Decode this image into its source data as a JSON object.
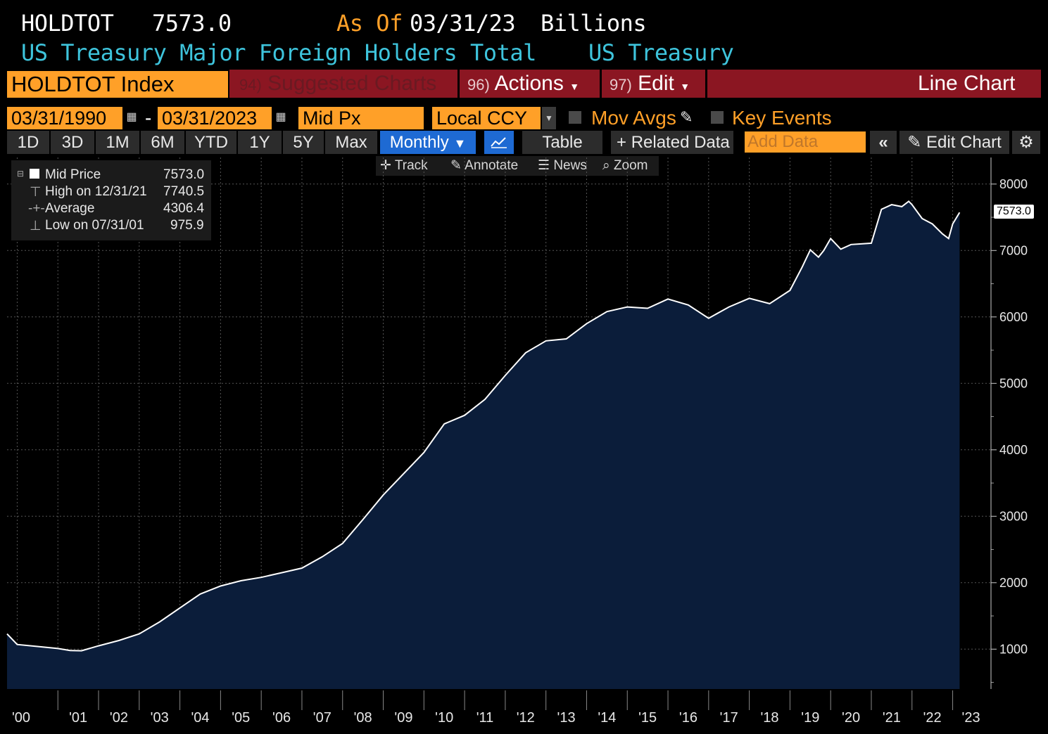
{
  "header": {
    "ticker": "HOLDTOT",
    "last_value": "7573.0",
    "as_of_label": "As Of",
    "as_of_date": "03/31/23",
    "units": "Billions",
    "description": "US Treasury Major Foreign Holders Total",
    "source": "US Treasury"
  },
  "command_bar": {
    "security": "HOLDTOT Index",
    "suggested_num": "94)",
    "suggested_label": "Suggested Charts",
    "actions_num": "96)",
    "actions_label": "Actions",
    "edit_num": "97)",
    "edit_label": "Edit",
    "chart_type": "Line Chart"
  },
  "settings_bar": {
    "start_date": "03/31/1990",
    "end_date": "03/31/2023",
    "date_dash": "-",
    "field": "Mid Px",
    "currency": "Local CCY",
    "mov_avgs": "Mov Avgs",
    "key_events": "Key Events"
  },
  "range_bar": {
    "ranges": [
      "1D",
      "3D",
      "1M",
      "6M",
      "YTD",
      "1Y",
      "5Y",
      "Max"
    ],
    "frequency": "Monthly",
    "table": "Table",
    "related": "Related Data",
    "add_data_placeholder": "Add Data",
    "edit_chart": "Edit Chart"
  },
  "chart_tools": {
    "track": "Track",
    "annotate": "Annotate",
    "news": "News",
    "zoom": "Zoom"
  },
  "legend": {
    "series_label": "Mid Price",
    "series_value": "7573.0",
    "high_label": "High on 12/31/21",
    "high_value": "7740.5",
    "avg_label": "Average",
    "avg_value": "4306.4",
    "low_label": "Low on 07/31/01",
    "low_value": "975.9"
  },
  "colors": {
    "accent_orange": "#ffa028",
    "title_cyan": "#3ec4dc",
    "bar_red": "#8b1622",
    "area_fill": "#0b1d3a",
    "active_blue": "#1e6ad3"
  },
  "chart_data": {
    "type": "area",
    "title": "US Treasury Major Foreign Holders Total",
    "ylabel": "Billions",
    "ylim": [
      400,
      8400
    ],
    "y_ticks": [
      1000,
      2000,
      3000,
      4000,
      5000,
      6000,
      7000,
      8000
    ],
    "x_tick_labels": [
      "'00",
      "'01",
      "'02",
      "'03",
      "'04",
      "'05",
      "'06",
      "'07",
      "'08",
      "'09",
      "'10",
      "'11",
      "'12",
      "'13",
      "'14",
      "'15",
      "'16",
      "'17",
      "'18",
      "'19",
      "'20",
      "'21",
      "'22",
      "'23"
    ],
    "x_tick_years": [
      2000,
      2001,
      2002,
      2003,
      2004,
      2005,
      2006,
      2007,
      2008,
      2009,
      2010,
      2011,
      2012,
      2013,
      2014,
      2015,
      2016,
      2017,
      2018,
      2019,
      2020,
      2021,
      2022,
      2023
    ],
    "x_range": [
      1999.75,
      2023.25
    ],
    "last_value_label": "7573.0",
    "series": [
      {
        "name": "Mid Price",
        "x": [
          1999.75,
          2000.0,
          2000.5,
          2001.0,
          2001.3,
          2001.58,
          2002.0,
          2002.5,
          2003.0,
          2003.5,
          2004.0,
          2004.5,
          2005.0,
          2005.5,
          2006.0,
          2006.5,
          2007.0,
          2007.5,
          2008.0,
          2008.5,
          2009.0,
          2009.5,
          2010.0,
          2010.5,
          2011.0,
          2011.5,
          2012.0,
          2012.5,
          2013.0,
          2013.5,
          2014.0,
          2014.5,
          2015.0,
          2015.5,
          2016.0,
          2016.5,
          2017.0,
          2017.5,
          2018.0,
          2018.5,
          2019.0,
          2019.3,
          2019.5,
          2019.7,
          2019.83,
          2020.0,
          2020.25,
          2020.5,
          2020.75,
          2021.0,
          2021.25,
          2021.5,
          2021.75,
          2021.92,
          2022.0,
          2022.25,
          2022.5,
          2022.75,
          2022.9,
          2023.0,
          2023.17
        ],
        "values": [
          1230,
          1070,
          1040,
          1010,
          980,
          975.9,
          1050,
          1130,
          1230,
          1410,
          1620,
          1830,
          1950,
          2030,
          2080,
          2150,
          2220,
          2390,
          2590,
          2950,
          3320,
          3640,
          3960,
          4390,
          4520,
          4760,
          5120,
          5460,
          5640,
          5670,
          5900,
          6080,
          6150,
          6130,
          6270,
          6180,
          5980,
          6150,
          6280,
          6200,
          6400,
          6750,
          7010,
          6900,
          7000,
          7180,
          7020,
          7090,
          7100,
          7110,
          7620,
          7690,
          7660,
          7740.5,
          7690,
          7480,
          7400,
          7250,
          7180,
          7400,
          7573
        ]
      }
    ]
  }
}
